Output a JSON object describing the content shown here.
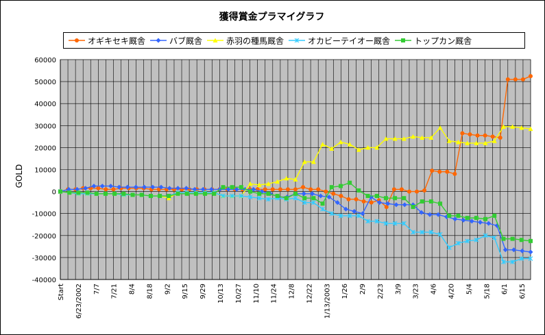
{
  "chart_data": {
    "type": "line",
    "title": "獲得賞金プラマイグラフ",
    "xlabel": "",
    "ylabel": "GOLD",
    "ylim": [
      -40000,
      60000
    ],
    "yticks": [
      "60000",
      "50000",
      "40000",
      "30000",
      "20000",
      "10000",
      "0",
      "-10000",
      "-20000",
      "-30000",
      "-40000"
    ],
    "ytick_values": [
      60000,
      50000,
      40000,
      30000,
      20000,
      10000,
      0,
      -10000,
      -20000,
      -30000,
      -40000
    ],
    "grid": true,
    "legend_position": "top",
    "plot_background": "#c0c0c0",
    "x_tick_labels": [
      "Start",
      "6/23/2002",
      "7/7",
      "7/21",
      "8/4",
      "8/18",
      "9/2",
      "9/15",
      "9/29",
      "10/13",
      "10/27",
      "11/10",
      "11/24",
      "12/8",
      "12/22",
      "1/13/2003",
      "1/26",
      "2/9",
      "2/23",
      "3/9",
      "3/23",
      "4/6",
      "4/20",
      "5/4",
      "5/18",
      "6/1",
      "6/15"
    ],
    "series": [
      {
        "name": "オギキセキ厩舎",
        "color": "#ff6600",
        "marker": "circle",
        "values": [
          0,
          1000,
          1000,
          1500,
          1500,
          1500,
          1000,
          1000,
          1500,
          1500,
          1500,
          1500,
          1000,
          1000,
          1000,
          1000,
          1000,
          1000,
          1000,
          1000,
          1000,
          1000,
          1000,
          1000,
          1000,
          1000,
          1000,
          1000,
          1000,
          1000,
          1000,
          1000,
          2000,
          1000,
          1000,
          0,
          -1000,
          -2000,
          -3500,
          -3500,
          -4500,
          -5000,
          -4000,
          -7000,
          1000,
          1000,
          0,
          0,
          500,
          9500,
          9000,
          9000,
          8000,
          26500,
          26000,
          25500,
          25500,
          25000,
          24500,
          51000,
          51000,
          51000,
          52500
        ]
      },
      {
        "name": "バブ厩舎",
        "color": "#3366ff",
        "marker": "diamond",
        "values": [
          0,
          1000,
          1000,
          1500,
          2500,
          2500,
          2500,
          2000,
          2000,
          2000,
          2000,
          2000,
          2000,
          1500,
          1500,
          1500,
          1000,
          1000,
          1000,
          1000,
          1000,
          1000,
          1000,
          1000,
          0,
          -1000,
          -2500,
          -2500,
          -1000,
          -1000,
          -1000,
          -2000,
          -2500,
          -5000,
          -8000,
          -9000,
          -10000,
          -2500,
          -5000,
          -5500,
          -6000,
          -6000,
          -6000,
          -9500,
          -10500,
          -10500,
          -11500,
          -12500,
          -13000,
          -13500,
          -14000,
          -14500,
          -15500,
          -26500,
          -26500,
          -27000,
          -27500
        ]
      },
      {
        "name": "赤羽の種馬厩舎",
        "color": "#ffff00",
        "marker": "triangle",
        "values": [
          0,
          -500,
          -1000,
          -1000,
          -1000,
          -1000,
          -1000,
          -1500,
          -1500,
          -1500,
          -2000,
          -2000,
          -3000,
          -500,
          -500,
          -500,
          -500,
          -500,
          -2000,
          -2000,
          -2000,
          3500,
          3000,
          3500,
          4500,
          6000,
          5500,
          13500,
          13500,
          21500,
          19500,
          22500,
          21500,
          19000,
          20000,
          20000,
          24000,
          24000,
          24000,
          25000,
          24500,
          24500,
          29000,
          23000,
          22500,
          22000,
          22000,
          22000,
          23000,
          29500,
          29500,
          29000,
          28500
        ]
      },
      {
        "name": "オカビーテイオー厩舎",
        "color": "#33ccff",
        "marker": "x",
        "values": [
          0,
          -500,
          -1000,
          -1000,
          -1000,
          -1000,
          -1000,
          -1500,
          -1500,
          -1500,
          -2000,
          -2000,
          -2000,
          -500,
          -500,
          -500,
          -500,
          -500,
          -2000,
          -2000,
          -2000,
          -2500,
          -3000,
          -3500,
          -3000,
          -3500,
          -3000,
          -5000,
          -5000,
          -8000,
          -10000,
          -11000,
          -11000,
          -11000,
          -13500,
          -13500,
          -14500,
          -14500,
          -14500,
          -18500,
          -18500,
          -18500,
          -19500,
          -25500,
          -23500,
          -22500,
          -22000,
          -20000,
          -21000,
          -32000,
          -32000,
          -30500,
          -30500
        ]
      },
      {
        "name": "トップカン厩舎",
        "color": "#33cc33",
        "marker": "square",
        "values": [
          0,
          -500,
          -500,
          -500,
          -1000,
          -1000,
          -1000,
          -1000,
          -1500,
          -1500,
          -2000,
          -2000,
          -2000,
          -1000,
          -1000,
          -1000,
          -1000,
          -1000,
          2000,
          2000,
          2000,
          0,
          -1000,
          -1000,
          -2000,
          -3000,
          -1000,
          -3000,
          -3000,
          -5500,
          2000,
          2500,
          4000,
          500,
          -2000,
          -2000,
          -3000,
          -3000,
          -3000,
          -7000,
          -4500,
          -4500,
          -5500,
          -11000,
          -11000,
          -12000,
          -12000,
          -12500,
          -11000,
          -21500,
          -21500,
          -22000,
          -22500
        ]
      }
    ]
  }
}
